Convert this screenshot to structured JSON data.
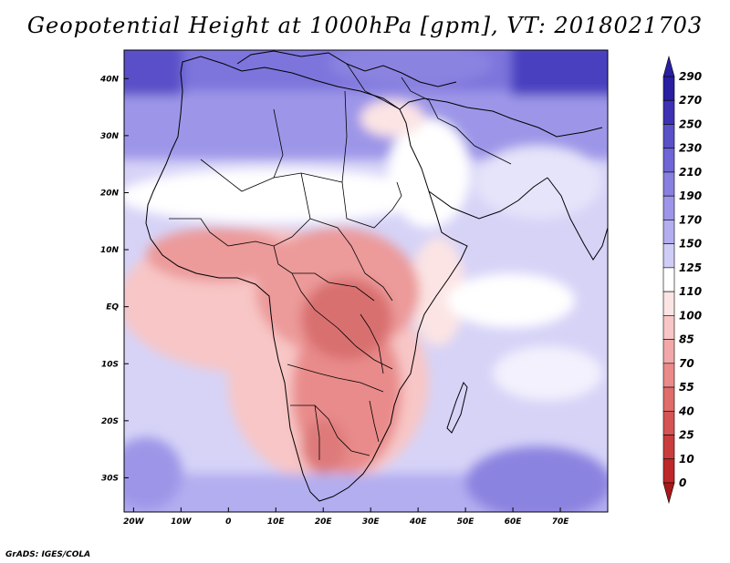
{
  "title": "Geopotential Height at 1000hPa [gpm], VT: 2018021703",
  "credit": "GrADS: IGES/COLA",
  "axes": {
    "lon_labels": [
      "20W",
      "10W",
      "0",
      "10E",
      "20E",
      "30E",
      "40E",
      "50E",
      "60E",
      "70E"
    ],
    "lat_labels": [
      "40N",
      "30N",
      "20N",
      "10N",
      "EQ",
      "10S",
      "20S",
      "30S"
    ]
  },
  "map_extent": {
    "lon": [
      -22,
      80
    ],
    "lat": [
      -36,
      45
    ]
  },
  "colorbar": {
    "levels": [
      "290",
      "270",
      "250",
      "230",
      "210",
      "190",
      "170",
      "150",
      "125",
      "110",
      "100",
      "85",
      "70",
      "55",
      "40",
      "25",
      "10",
      "0"
    ],
    "colors": [
      "#2a1fa0",
      "#3d32b4",
      "#5a50c8",
      "#6e66d6",
      "#8880e0",
      "#9d96e8",
      "#b3aef0",
      "#cfccf6",
      "#ffffff",
      "#fce4e4",
      "#f8c6c6",
      "#f2a8a8",
      "#ea8a8a",
      "#e06c6c",
      "#d65454",
      "#cb3d3d",
      "#bf2828"
    ]
  }
}
